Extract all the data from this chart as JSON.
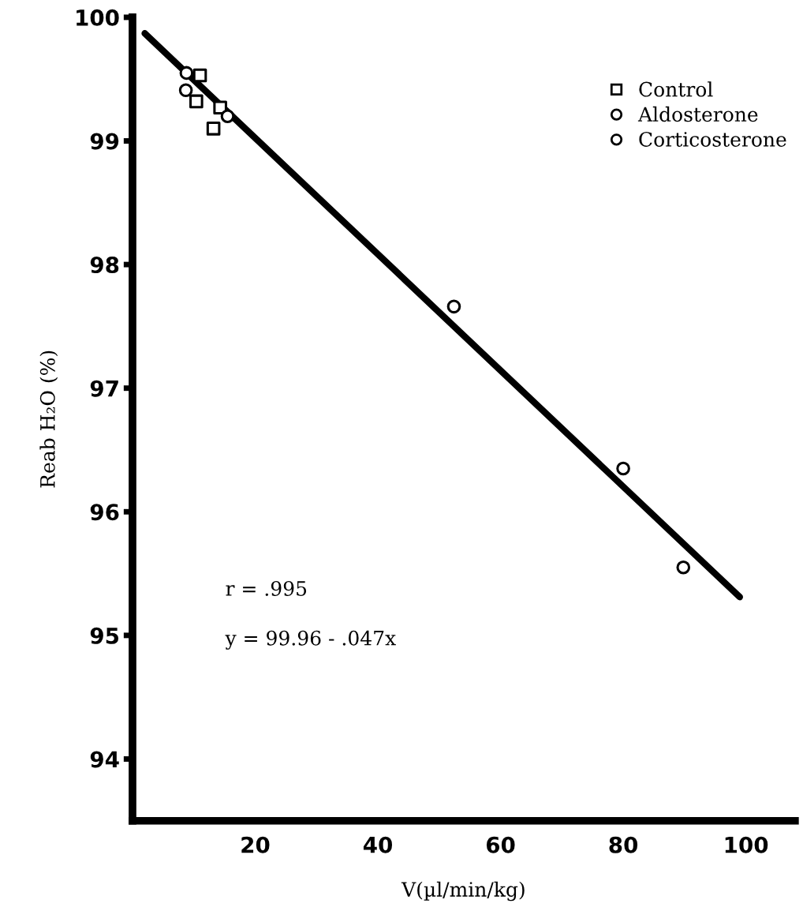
{
  "chart_data": {
    "type": "scatter",
    "xlabel": "V(µl/min/kg)",
    "ylabel": "Reab H₂O (%)",
    "xlim": [
      0,
      108
    ],
    "ylim": [
      93.5,
      100
    ],
    "xticks": [
      20,
      40,
      60,
      80,
      100
    ],
    "yticks": [
      94,
      95,
      96,
      97,
      98,
      99,
      100
    ],
    "grid": false,
    "legend": "top right",
    "series": [
      {
        "name": "Control",
        "color": "#000000",
        "marker": "square",
        "x": [
          11.0,
          10.4,
          14.3,
          13.2
        ],
        "values": [
          99.53,
          99.32,
          99.27,
          99.1
        ]
      },
      {
        "name": "Aldosterone",
        "color": "#000000",
        "marker": "circle",
        "x": [
          8.8,
          8.7,
          15.5
        ],
        "values": [
          99.55,
          99.41,
          99.2
        ]
      },
      {
        "name": "Corticosterone",
        "color": "#000000",
        "marker": "circle",
        "x": [
          52.4,
          80.0,
          89.8
        ],
        "values": [
          97.66,
          96.35,
          95.55
        ]
      },
      {
        "type": "line",
        "color": "#000000",
        "line_style": "solid",
        "x": [
          2,
          99
        ],
        "values": [
          99.87,
          95.31
        ]
      }
    ],
    "annotations": [
      "r = .995",
      "y = 99.96 - .047x"
    ]
  }
}
